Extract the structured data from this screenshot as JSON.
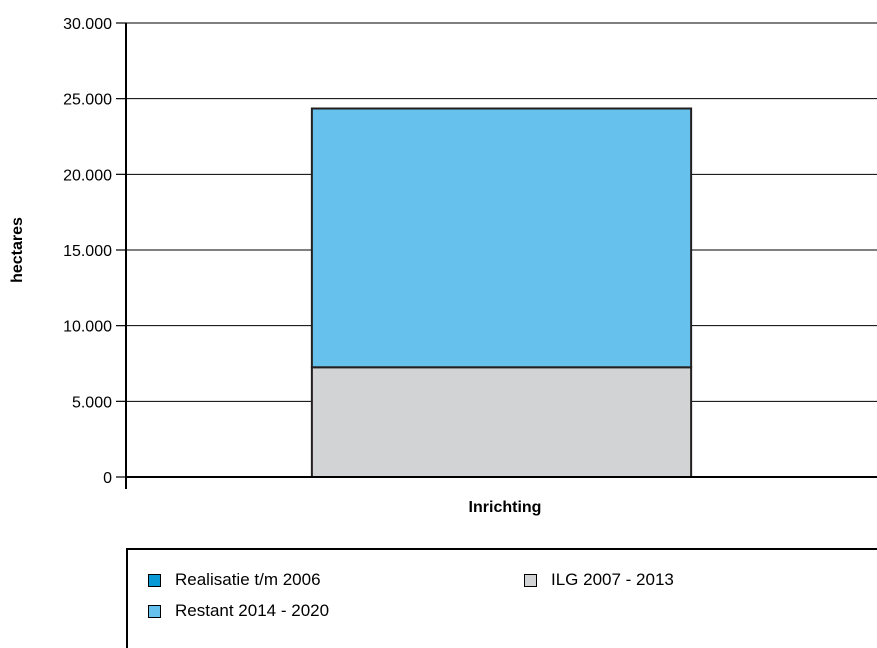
{
  "chart_data": {
    "type": "bar",
    "stacked": true,
    "categories": [
      "Inrichting"
    ],
    "series": [
      {
        "name": "Realisatie t/m 2006",
        "values": [
          0
        ],
        "color": "#0a9bd6"
      },
      {
        "name": "ILG 2007 - 2013",
        "values": [
          7250
        ],
        "color": "#d2d3d5"
      },
      {
        "name": "Restant 2014  - 2020",
        "values": [
          17100
        ],
        "color": "#66c1ed"
      }
    ],
    "xlabel": "Inrichting",
    "ylabel": "hectares",
    "ylim": [
      0,
      30000
    ],
    "yticks": [
      0,
      5000,
      10000,
      15000,
      20000,
      25000,
      30000
    ],
    "ytick_labels": [
      "0",
      "5.000",
      "10.000",
      "15.000",
      "20.000",
      "25.000",
      "30.000"
    ],
    "grid": true,
    "legend_position": "bottom"
  }
}
